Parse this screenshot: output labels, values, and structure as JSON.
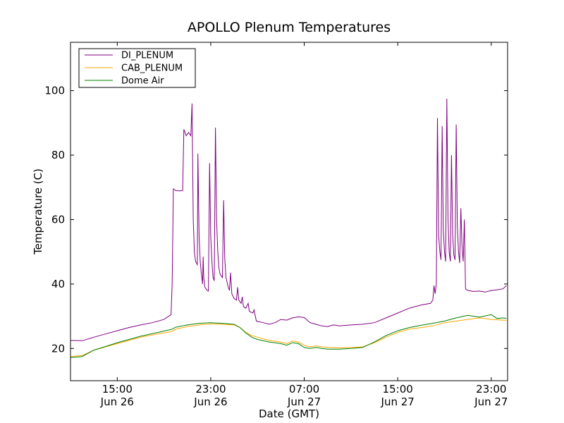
{
  "chart_data": {
    "type": "line",
    "title": "APOLLO Plenum Temperatures",
    "xlabel": "Date (GMT)",
    "ylabel": "Temperature (C)",
    "x_unit": "hours (GMT, Jun 26 00:00 = 0)",
    "xlim": [
      11.0,
      48.4
    ],
    "ylim": [
      10,
      115
    ],
    "yticks": [
      20,
      40,
      60,
      80,
      100
    ],
    "xticks": [
      {
        "x": 15,
        "time": "15:00",
        "date": "Jun 26"
      },
      {
        "x": 23,
        "time": "23:00",
        "date": "Jun 26"
      },
      {
        "x": 31,
        "time": "07:00",
        "date": "Jun 27"
      },
      {
        "x": 39,
        "time": "15:00",
        "date": "Jun 27"
      },
      {
        "x": 47,
        "time": "23:00",
        "date": "Jun 27"
      }
    ],
    "legend_position": "top-left",
    "grid": false,
    "series": [
      {
        "name": "DI_PLENUM",
        "color": "#800080",
        "points": [
          [
            11.0,
            22.5
          ],
          [
            12.0,
            22.4
          ],
          [
            13.0,
            23.5
          ],
          [
            14.0,
            24.5
          ],
          [
            15.0,
            25.5
          ],
          [
            16.0,
            26.5
          ],
          [
            17.0,
            27.3
          ],
          [
            18.0,
            28.0
          ],
          [
            19.0,
            29.0
          ],
          [
            19.6,
            30.5
          ],
          [
            19.7,
            40.0
          ],
          [
            19.8,
            69.5
          ],
          [
            20.0,
            69.0
          ],
          [
            20.3,
            68.9
          ],
          [
            20.6,
            69.0
          ],
          [
            20.7,
            88.0
          ],
          [
            20.9,
            86.0
          ],
          [
            21.1,
            87.0
          ],
          [
            21.3,
            86.0
          ],
          [
            21.4,
            96.0
          ],
          [
            21.5,
            60.0
          ],
          [
            21.6,
            50.0
          ],
          [
            21.7,
            47.0
          ],
          [
            21.85,
            46.0
          ],
          [
            21.9,
            80.5
          ],
          [
            22.0,
            55.0
          ],
          [
            22.1,
            47.0
          ],
          [
            22.2,
            43.0
          ],
          [
            22.3,
            40.0
          ],
          [
            22.35,
            48.5
          ],
          [
            22.4,
            42.0
          ],
          [
            22.5,
            39.0
          ],
          [
            22.7,
            38.0
          ],
          [
            22.8,
            37.8
          ],
          [
            22.9,
            77.5
          ],
          [
            23.0,
            55.0
          ],
          [
            23.1,
            47.0
          ],
          [
            23.2,
            42.0
          ],
          [
            23.3,
            41.0
          ],
          [
            23.4,
            88.5
          ],
          [
            23.5,
            60.0
          ],
          [
            23.6,
            50.0
          ],
          [
            23.7,
            45.0
          ],
          [
            23.8,
            43.0
          ],
          [
            24.0,
            42.0
          ],
          [
            24.1,
            66.0
          ],
          [
            24.2,
            48.0
          ],
          [
            24.3,
            42.0
          ],
          [
            24.5,
            39.0
          ],
          [
            24.6,
            38.0
          ],
          [
            24.7,
            43.5
          ],
          [
            24.8,
            37.0
          ],
          [
            25.0,
            35.5
          ],
          [
            25.2,
            35.0
          ],
          [
            25.3,
            39.0
          ],
          [
            25.4,
            35.0
          ],
          [
            25.6,
            34.0
          ],
          [
            25.7,
            36.0
          ],
          [
            25.8,
            33.0
          ],
          [
            26.0,
            32.5
          ],
          [
            26.2,
            34.0
          ],
          [
            26.3,
            31.5
          ],
          [
            26.6,
            31.0
          ],
          [
            26.7,
            32.0
          ],
          [
            26.9,
            28.5
          ],
          [
            27.5,
            28.0
          ],
          [
            28.0,
            27.5
          ],
          [
            28.5,
            28.0
          ],
          [
            29.0,
            29.0
          ],
          [
            29.5,
            28.8
          ],
          [
            30.0,
            29.5
          ],
          [
            30.5,
            29.8
          ],
          [
            31.0,
            29.6
          ],
          [
            31.5,
            28.0
          ],
          [
            32.0,
            27.5
          ],
          [
            32.5,
            27.0
          ],
          [
            33.0,
            26.8
          ],
          [
            33.5,
            27.3
          ],
          [
            34.0,
            27.0
          ],
          [
            35.0,
            27.3
          ],
          [
            36.0,
            27.5
          ],
          [
            37.0,
            28.0
          ],
          [
            38.0,
            29.5
          ],
          [
            39.0,
            31.0
          ],
          [
            40.0,
            32.5
          ],
          [
            41.0,
            33.5
          ],
          [
            41.8,
            34.0
          ],
          [
            42.0,
            35.0
          ],
          [
            42.1,
            39.5
          ],
          [
            42.2,
            37.0
          ],
          [
            42.3,
            40.0
          ],
          [
            42.4,
            91.5
          ],
          [
            42.5,
            55.0
          ],
          [
            42.6,
            50.0
          ],
          [
            42.7,
            47.5
          ],
          [
            42.8,
            89.0
          ],
          [
            42.9,
            57.0
          ],
          [
            43.0,
            50.0
          ],
          [
            43.1,
            47.0
          ],
          [
            43.2,
            97.5
          ],
          [
            43.3,
            60.0
          ],
          [
            43.4,
            50.0
          ],
          [
            43.5,
            47.0
          ],
          [
            43.6,
            80.0
          ],
          [
            43.7,
            55.0
          ],
          [
            43.8,
            49.0
          ],
          [
            43.9,
            47.5
          ],
          [
            44.0,
            89.5
          ],
          [
            44.1,
            58.0
          ],
          [
            44.2,
            50.0
          ],
          [
            44.3,
            46.5
          ],
          [
            44.4,
            63.5
          ],
          [
            44.5,
            52.0
          ],
          [
            44.6,
            47.0
          ],
          [
            44.7,
            60.0
          ],
          [
            44.8,
            38.5
          ],
          [
            45.0,
            38.0
          ],
          [
            45.5,
            37.7
          ],
          [
            46.0,
            37.8
          ],
          [
            46.5,
            37.5
          ],
          [
            47.0,
            38.0
          ],
          [
            47.5,
            38.2
          ],
          [
            48.0,
            38.5
          ],
          [
            48.3,
            39.5
          ]
        ]
      },
      {
        "name": "CAB_PLENUM",
        "color": "#ffa500",
        "points": [
          [
            11.0,
            17.5
          ],
          [
            12.0,
            17.8
          ],
          [
            13.0,
            19.5
          ],
          [
            14.0,
            20.5
          ],
          [
            15.0,
            21.5
          ],
          [
            16.0,
            22.5
          ],
          [
            17.0,
            23.5
          ],
          [
            18.0,
            24.2
          ],
          [
            19.0,
            24.8
          ],
          [
            19.7,
            25.3
          ],
          [
            20.0,
            26.0
          ],
          [
            21.0,
            26.8
          ],
          [
            22.0,
            27.3
          ],
          [
            23.0,
            27.6
          ],
          [
            24.0,
            27.5
          ],
          [
            25.0,
            27.3
          ],
          [
            25.5,
            26.5
          ],
          [
            26.0,
            25.0
          ],
          [
            26.5,
            24.0
          ],
          [
            27.0,
            23.5
          ],
          [
            28.0,
            22.5
          ],
          [
            29.0,
            22.0
          ],
          [
            29.5,
            21.5
          ],
          [
            30.0,
            22.3
          ],
          [
            30.5,
            22.0
          ],
          [
            31.0,
            21.0
          ],
          [
            31.5,
            20.5
          ],
          [
            32.0,
            20.8
          ],
          [
            32.5,
            20.5
          ],
          [
            33.0,
            20.3
          ],
          [
            34.0,
            20.2
          ],
          [
            35.0,
            20.3
          ],
          [
            36.0,
            20.5
          ],
          [
            37.0,
            21.8
          ],
          [
            38.0,
            23.5
          ],
          [
            39.0,
            25.0
          ],
          [
            40.0,
            26.0
          ],
          [
            41.0,
            26.5
          ],
          [
            42.0,
            27.0
          ],
          [
            43.0,
            28.0
          ],
          [
            44.0,
            28.5
          ],
          [
            45.0,
            29.0
          ],
          [
            46.0,
            29.5
          ],
          [
            47.0,
            29.0
          ],
          [
            48.0,
            28.8
          ],
          [
            48.3,
            28.7
          ]
        ]
      },
      {
        "name": "Dome Air",
        "color": "#008000",
        "points": [
          [
            11.0,
            17.2
          ],
          [
            12.0,
            17.5
          ],
          [
            13.0,
            19.5
          ],
          [
            14.0,
            20.6
          ],
          [
            15.0,
            21.8
          ],
          [
            16.0,
            22.8
          ],
          [
            17.0,
            23.8
          ],
          [
            18.0,
            24.6
          ],
          [
            19.0,
            25.4
          ],
          [
            19.7,
            26.0
          ],
          [
            20.0,
            26.6
          ],
          [
            21.0,
            27.3
          ],
          [
            22.0,
            27.8
          ],
          [
            23.0,
            28.0
          ],
          [
            24.0,
            27.8
          ],
          [
            25.0,
            27.5
          ],
          [
            25.5,
            26.5
          ],
          [
            26.0,
            24.8
          ],
          [
            26.5,
            23.5
          ],
          [
            27.0,
            22.8
          ],
          [
            28.0,
            22.0
          ],
          [
            29.0,
            21.5
          ],
          [
            29.5,
            21.0
          ],
          [
            30.0,
            21.8
          ],
          [
            30.5,
            21.5
          ],
          [
            31.0,
            20.3
          ],
          [
            31.5,
            20.0
          ],
          [
            32.0,
            20.3
          ],
          [
            32.5,
            20.0
          ],
          [
            33.0,
            19.8
          ],
          [
            34.0,
            19.8
          ],
          [
            35.0,
            20.0
          ],
          [
            36.0,
            20.3
          ],
          [
            37.0,
            22.0
          ],
          [
            38.0,
            24.0
          ],
          [
            39.0,
            25.5
          ],
          [
            40.0,
            26.5
          ],
          [
            41.0,
            27.2
          ],
          [
            42.0,
            27.8
          ],
          [
            43.0,
            28.5
          ],
          [
            44.0,
            29.5
          ],
          [
            45.0,
            30.3
          ],
          [
            46.0,
            29.7
          ],
          [
            47.0,
            30.5
          ],
          [
            47.5,
            29.3
          ],
          [
            48.0,
            29.5
          ],
          [
            48.3,
            29.3
          ]
        ]
      }
    ]
  }
}
